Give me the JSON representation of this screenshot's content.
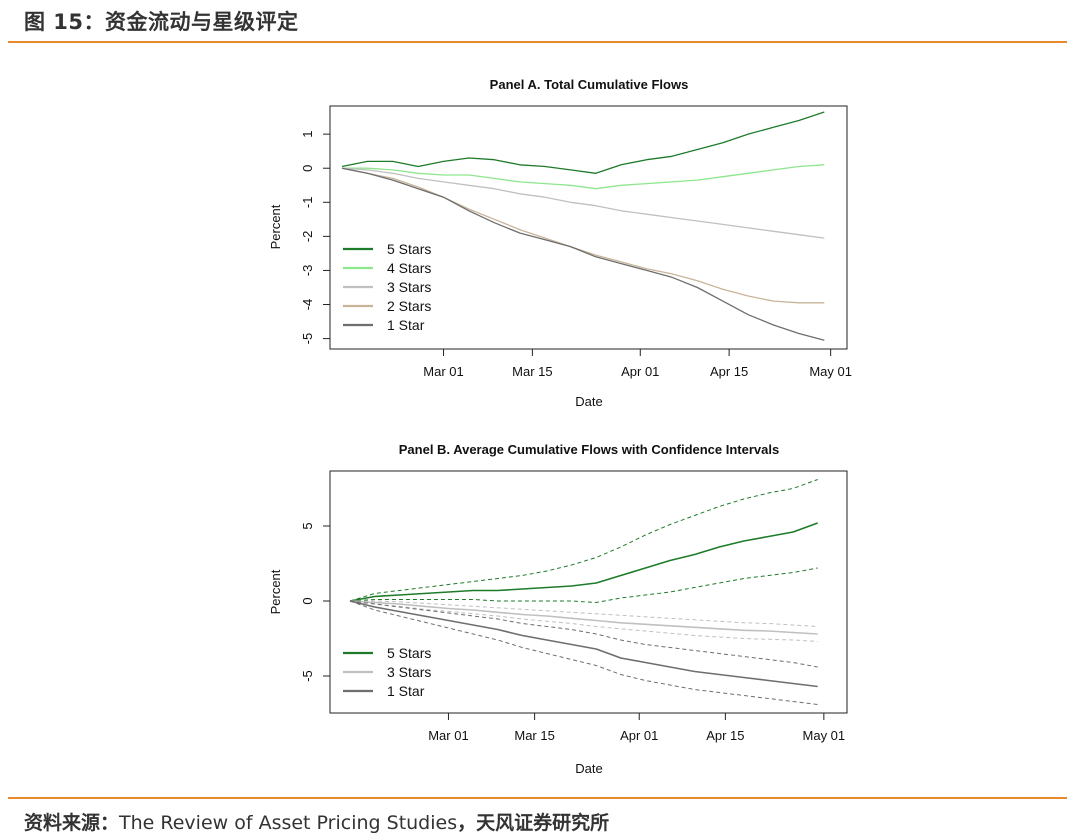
{
  "figure_title": "图 15：资金流动与星级评定",
  "source": {
    "prefix": "资料来源：",
    "publication": "The Review of Asset Pricing Studies",
    "separator": "，",
    "institution": "天风证券研究所"
  },
  "colors": {
    "accent_rule": "#e8892b",
    "5 Stars": "#1e7b2a",
    "4 Stars": "#8ee68e",
    "3 Stars": "#c0c0c0",
    "2 Stars": "#c9b49a",
    "1 Star": "#6e6e6e"
  },
  "chart_data": [
    {
      "type": "line",
      "title": "Panel A. Total Cumulative Flows",
      "xlabel": "Date",
      "ylabel": "Percent",
      "x_unit": "days since Feb 13",
      "xlim": [
        0,
        78
      ],
      "ylim": [
        -5.1,
        1.65
      ],
      "x_ticks": [
        {
          "value": 16,
          "label": "Mar 01"
        },
        {
          "value": 30,
          "label": "Mar 15"
        },
        {
          "value": 47,
          "label": "Apr 01"
        },
        {
          "value": 61,
          "label": "Apr 15"
        },
        {
          "value": 77,
          "label": "May 01"
        }
      ],
      "y_ticks": [
        {
          "value": 1,
          "label": "1"
        },
        {
          "value": 0,
          "label": "0"
        },
        {
          "value": -1,
          "label": "-1"
        },
        {
          "value": -2,
          "label": "-2"
        },
        {
          "value": -3,
          "label": "-3"
        },
        {
          "value": -4,
          "label": "-4"
        },
        {
          "value": -5,
          "label": "-5"
        }
      ],
      "legend_position": "bottom-left",
      "legend": [
        "5 Stars",
        "4 Stars",
        "3 Stars",
        "2 Stars",
        "1 Star"
      ],
      "series": [
        {
          "name": "5 Stars",
          "x": [
            0,
            4,
            8,
            12,
            16,
            20,
            24,
            28,
            32,
            36,
            40,
            44,
            48,
            52,
            56,
            60,
            64,
            68,
            72,
            76
          ],
          "values": [
            0.05,
            0.2,
            0.2,
            0.05,
            0.2,
            0.3,
            0.25,
            0.1,
            0.05,
            -0.05,
            -0.15,
            0.1,
            0.25,
            0.35,
            0.55,
            0.75,
            1.0,
            1.2,
            1.4,
            1.65
          ]
        },
        {
          "name": "4 Stars",
          "x": [
            0,
            4,
            8,
            12,
            16,
            20,
            24,
            28,
            32,
            36,
            40,
            44,
            48,
            52,
            56,
            60,
            64,
            68,
            72,
            76
          ],
          "values": [
            0.0,
            0.0,
            -0.05,
            -0.15,
            -0.2,
            -0.2,
            -0.3,
            -0.4,
            -0.45,
            -0.5,
            -0.6,
            -0.5,
            -0.45,
            -0.4,
            -0.35,
            -0.25,
            -0.15,
            -0.05,
            0.05,
            0.1
          ]
        },
        {
          "name": "3 Stars",
          "x": [
            0,
            4,
            8,
            12,
            16,
            20,
            24,
            28,
            32,
            36,
            40,
            44,
            48,
            52,
            56,
            60,
            64,
            68,
            72,
            76
          ],
          "values": [
            0.0,
            -0.05,
            -0.15,
            -0.3,
            -0.4,
            -0.5,
            -0.6,
            -0.75,
            -0.85,
            -1.0,
            -1.1,
            -1.25,
            -1.35,
            -1.45,
            -1.55,
            -1.65,
            -1.75,
            -1.85,
            -1.95,
            -2.05
          ]
        },
        {
          "name": "2 Stars",
          "x": [
            0,
            4,
            8,
            12,
            16,
            20,
            24,
            28,
            32,
            36,
            40,
            44,
            48,
            52,
            56,
            60,
            64,
            68,
            72,
            76
          ],
          "values": [
            0.0,
            -0.15,
            -0.3,
            -0.55,
            -0.85,
            -1.2,
            -1.5,
            -1.8,
            -2.05,
            -2.3,
            -2.55,
            -2.75,
            -2.95,
            -3.1,
            -3.3,
            -3.55,
            -3.75,
            -3.9,
            -3.95,
            -3.95
          ]
        },
        {
          "name": "1 Star",
          "x": [
            0,
            4,
            8,
            12,
            16,
            20,
            24,
            28,
            32,
            36,
            40,
            44,
            48,
            52,
            56,
            60,
            64,
            68,
            72,
            76
          ],
          "values": [
            0.0,
            -0.15,
            -0.35,
            -0.6,
            -0.85,
            -1.25,
            -1.6,
            -1.9,
            -2.1,
            -2.3,
            -2.6,
            -2.8,
            -3.0,
            -3.2,
            -3.5,
            -3.9,
            -4.3,
            -4.6,
            -4.85,
            -5.05
          ]
        }
      ]
    },
    {
      "type": "line",
      "title": "Panel B. Average Cumulative Flows with Confidence Intervals",
      "xlabel": "Date",
      "ylabel": "Percent",
      "x_unit": "days since Feb 13",
      "xlim": [
        0,
        78
      ],
      "ylim": [
        -7.0,
        8.2
      ],
      "x_ticks": [
        {
          "value": 16,
          "label": "Mar 01"
        },
        {
          "value": 30,
          "label": "Mar 15"
        },
        {
          "value": 47,
          "label": "Apr 01"
        },
        {
          "value": 61,
          "label": "Apr 15"
        },
        {
          "value": 77,
          "label": "May 01"
        }
      ],
      "y_ticks": [
        {
          "value": 5,
          "label": "5"
        },
        {
          "value": 0,
          "label": "0"
        },
        {
          "value": -5,
          "label": "-5"
        }
      ],
      "legend_position": "bottom-left",
      "legend": [
        "5 Stars",
        "3 Stars",
        "1 Star"
      ],
      "series": [
        {
          "name": "5 Stars",
          "x": [
            0,
            4,
            8,
            12,
            16,
            20,
            24,
            28,
            32,
            36,
            40,
            44,
            48,
            52,
            56,
            60,
            64,
            68,
            72,
            76
          ],
          "values": [
            0.0,
            0.3,
            0.4,
            0.5,
            0.6,
            0.7,
            0.7,
            0.8,
            0.9,
            1.0,
            1.2,
            1.7,
            2.2,
            2.7,
            3.1,
            3.6,
            4.0,
            4.3,
            4.6,
            5.2
          ],
          "upper": [
            0.0,
            0.5,
            0.7,
            0.9,
            1.1,
            1.3,
            1.5,
            1.7,
            2.0,
            2.4,
            2.9,
            3.6,
            4.4,
            5.1,
            5.7,
            6.3,
            6.8,
            7.2,
            7.5,
            8.1
          ],
          "lower": [
            0.0,
            0.1,
            0.1,
            0.1,
            0.1,
            0.1,
            0.0,
            0.0,
            0.0,
            0.0,
            -0.1,
            0.2,
            0.4,
            0.6,
            0.9,
            1.2,
            1.5,
            1.7,
            1.9,
            2.2
          ]
        },
        {
          "name": "3 Stars",
          "x": [
            0,
            4,
            8,
            12,
            16,
            20,
            24,
            28,
            32,
            36,
            40,
            44,
            48,
            52,
            56,
            60,
            64,
            68,
            72,
            76
          ],
          "values": [
            0.0,
            -0.1,
            -0.2,
            -0.35,
            -0.5,
            -0.6,
            -0.75,
            -0.9,
            -1.0,
            -1.15,
            -1.3,
            -1.45,
            -1.55,
            -1.65,
            -1.75,
            -1.85,
            -1.95,
            -2.0,
            -2.1,
            -2.2
          ],
          "upper": [
            0.0,
            0.0,
            -0.05,
            -0.15,
            -0.25,
            -0.35,
            -0.45,
            -0.55,
            -0.65,
            -0.75,
            -0.85,
            -0.95,
            -1.05,
            -1.15,
            -1.25,
            -1.35,
            -1.45,
            -1.5,
            -1.6,
            -1.7
          ],
          "lower": [
            0.0,
            -0.2,
            -0.35,
            -0.55,
            -0.7,
            -0.85,
            -1.0,
            -1.2,
            -1.35,
            -1.5,
            -1.7,
            -1.85,
            -2.0,
            -2.15,
            -2.3,
            -2.4,
            -2.5,
            -2.55,
            -2.6,
            -2.7
          ]
        },
        {
          "name": "1 Star",
          "x": [
            0,
            4,
            8,
            12,
            16,
            20,
            24,
            28,
            32,
            36,
            40,
            44,
            48,
            52,
            56,
            60,
            64,
            68,
            72,
            76
          ],
          "values": [
            0.0,
            -0.4,
            -0.7,
            -1.0,
            -1.3,
            -1.6,
            -1.9,
            -2.3,
            -2.6,
            -2.9,
            -3.2,
            -3.8,
            -4.1,
            -4.4,
            -4.7,
            -4.9,
            -5.1,
            -5.3,
            -5.5,
            -5.7
          ],
          "upper": [
            0.0,
            -0.2,
            -0.4,
            -0.6,
            -0.8,
            -1.0,
            -1.2,
            -1.5,
            -1.7,
            -1.9,
            -2.2,
            -2.6,
            -2.9,
            -3.1,
            -3.3,
            -3.5,
            -3.7,
            -3.9,
            -4.1,
            -4.4
          ],
          "lower": [
            0.0,
            -0.6,
            -1.0,
            -1.4,
            -1.8,
            -2.2,
            -2.6,
            -3.1,
            -3.5,
            -3.9,
            -4.3,
            -4.9,
            -5.3,
            -5.6,
            -5.9,
            -6.1,
            -6.3,
            -6.5,
            -6.7,
            -6.9
          ]
        }
      ]
    }
  ]
}
